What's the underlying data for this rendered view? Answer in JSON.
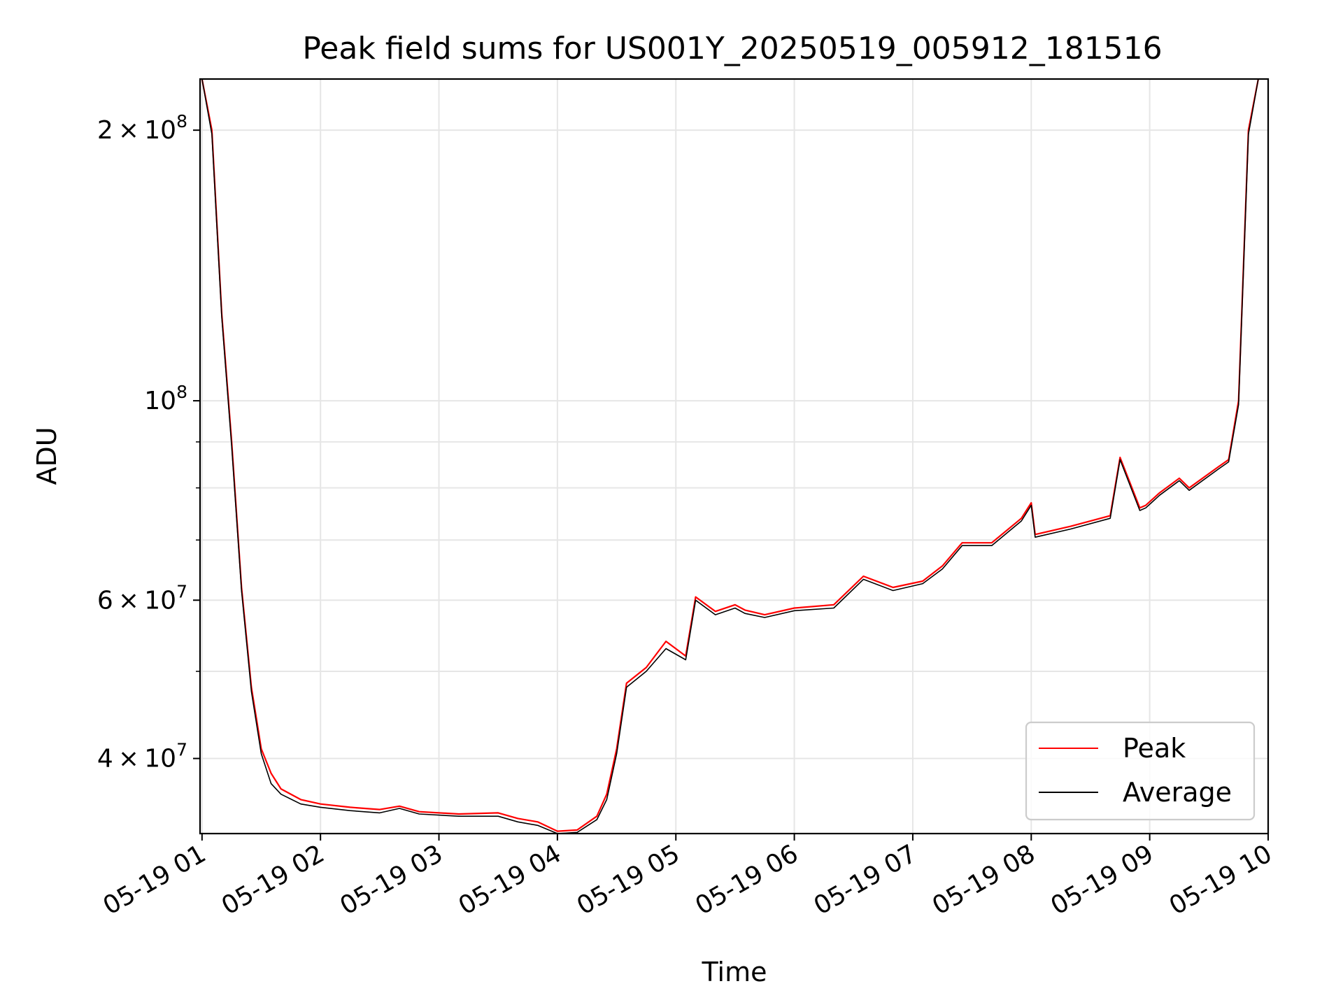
{
  "chart_data": {
    "type": "line",
    "title": "Peak field sums for US001Y_20250519_005912_181516",
    "xlabel": "Time",
    "ylabel": "ADU",
    "y_scale": "log",
    "xlim": [
      "2025-05-19T00:59",
      "2025-05-19T10:00"
    ],
    "ylim": [
      33000000,
      228000000
    ],
    "x_ticks": [
      {
        "value": "2025-05-19T01:00",
        "label": "05-19 01"
      },
      {
        "value": "2025-05-19T02:00",
        "label": "05-19 02"
      },
      {
        "value": "2025-05-19T03:00",
        "label": "05-19 03"
      },
      {
        "value": "2025-05-19T04:00",
        "label": "05-19 04"
      },
      {
        "value": "2025-05-19T05:00",
        "label": "05-19 05"
      },
      {
        "value": "2025-05-19T06:00",
        "label": "05-19 06"
      },
      {
        "value": "2025-05-19T07:00",
        "label": "05-19 07"
      },
      {
        "value": "2025-05-19T08:00",
        "label": "05-19 08"
      },
      {
        "value": "2025-05-19T09:00",
        "label": "05-19 09"
      },
      {
        "value": "2025-05-19T10:00",
        "label": "05-19 10"
      }
    ],
    "y_major_ticks": [
      {
        "value": 40000000,
        "mantissa": "4",
        "exponent": "7"
      },
      {
        "value": 60000000,
        "mantissa": "6",
        "exponent": "7"
      },
      {
        "value": 100000000,
        "mantissa": "",
        "exponent": "8"
      },
      {
        "value": 200000000,
        "mantissa": "2",
        "exponent": "8"
      }
    ],
    "tick_text": {
      "times": "×",
      "base": "10"
    },
    "y_minor_ticks": [
      50000000,
      70000000,
      80000000,
      90000000
    ],
    "grid": true,
    "legend": {
      "position": "lower-right",
      "entries": [
        "Peak",
        "Average"
      ]
    },
    "series": [
      {
        "name": "Peak",
        "color": "#ff0000",
        "x": [
          "2025-05-19T01:00",
          "2025-05-19T01:05",
          "2025-05-19T01:10",
          "2025-05-19T01:15",
          "2025-05-19T01:20",
          "2025-05-19T01:25",
          "2025-05-19T01:30",
          "2025-05-19T01:35",
          "2025-05-19T01:40",
          "2025-05-19T01:50",
          "2025-05-19T02:00",
          "2025-05-19T02:15",
          "2025-05-19T02:30",
          "2025-05-19T02:40",
          "2025-05-19T02:50",
          "2025-05-19T03:10",
          "2025-05-19T03:30",
          "2025-05-19T03:40",
          "2025-05-19T03:50",
          "2025-05-19T04:00",
          "2025-05-19T04:10",
          "2025-05-19T04:20",
          "2025-05-19T04:25",
          "2025-05-19T04:30",
          "2025-05-19T04:35",
          "2025-05-19T04:45",
          "2025-05-19T04:55",
          "2025-05-19T05:05",
          "2025-05-19T05:10",
          "2025-05-19T05:20",
          "2025-05-19T05:30",
          "2025-05-19T05:35",
          "2025-05-19T05:45",
          "2025-05-19T06:00",
          "2025-05-19T06:20",
          "2025-05-19T06:35",
          "2025-05-19T06:50",
          "2025-05-19T07:05",
          "2025-05-19T07:15",
          "2025-05-19T07:25",
          "2025-05-19T07:40",
          "2025-05-19T07:55",
          "2025-05-19T08:00",
          "2025-05-19T08:02",
          "2025-05-19T08:20",
          "2025-05-19T08:40",
          "2025-05-19T08:45",
          "2025-05-19T08:55",
          "2025-05-19T08:58",
          "2025-05-19T09:05",
          "2025-05-19T09:15",
          "2025-05-19T09:20",
          "2025-05-19T09:35",
          "2025-05-19T09:40",
          "2025-05-19T09:45",
          "2025-05-19T09:50",
          "2025-05-19T09:55"
        ],
        "values": [
          228000000,
          200000000,
          125000000,
          90000000,
          62000000,
          48000000,
          41000000,
          38500000,
          37000000,
          36000000,
          35600000,
          35300000,
          35100000,
          35400000,
          34900000,
          34700000,
          34800000,
          34300000,
          34000000,
          33200000,
          33300000,
          34500000,
          36500000,
          41000000,
          48500000,
          50500000,
          54000000,
          52000000,
          60500000,
          58300000,
          59300000,
          58500000,
          57800000,
          58800000,
          59300000,
          63800000,
          62000000,
          63000000,
          65500000,
          69500000,
          69500000,
          74000000,
          77000000,
          71000000,
          72500000,
          74500000,
          86500000,
          76000000,
          76500000,
          79000000,
          82000000,
          80000000,
          84500000,
          86000000,
          100000000,
          200000000,
          228000000
        ]
      },
      {
        "name": "Average",
        "color": "#000000",
        "x": [
          "2025-05-19T01:00",
          "2025-05-19T01:05",
          "2025-05-19T01:10",
          "2025-05-19T01:15",
          "2025-05-19T01:20",
          "2025-05-19T01:25",
          "2025-05-19T01:30",
          "2025-05-19T01:35",
          "2025-05-19T01:40",
          "2025-05-19T01:50",
          "2025-05-19T02:00",
          "2025-05-19T02:15",
          "2025-05-19T02:30",
          "2025-05-19T02:40",
          "2025-05-19T02:50",
          "2025-05-19T03:10",
          "2025-05-19T03:30",
          "2025-05-19T03:40",
          "2025-05-19T03:50",
          "2025-05-19T04:00",
          "2025-05-19T04:10",
          "2025-05-19T04:20",
          "2025-05-19T04:25",
          "2025-05-19T04:30",
          "2025-05-19T04:35",
          "2025-05-19T04:45",
          "2025-05-19T04:55",
          "2025-05-19T05:05",
          "2025-05-19T05:10",
          "2025-05-19T05:20",
          "2025-05-19T05:30",
          "2025-05-19T05:35",
          "2025-05-19T05:45",
          "2025-05-19T06:00",
          "2025-05-19T06:20",
          "2025-05-19T06:35",
          "2025-05-19T06:50",
          "2025-05-19T07:05",
          "2025-05-19T07:15",
          "2025-05-19T07:25",
          "2025-05-19T07:40",
          "2025-05-19T07:55",
          "2025-05-19T08:00",
          "2025-05-19T08:02",
          "2025-05-19T08:20",
          "2025-05-19T08:40",
          "2025-05-19T08:45",
          "2025-05-19T08:55",
          "2025-05-19T08:58",
          "2025-05-19T09:05",
          "2025-05-19T09:15",
          "2025-05-19T09:20",
          "2025-05-19T09:35",
          "2025-05-19T09:40",
          "2025-05-19T09:45",
          "2025-05-19T09:50",
          "2025-05-19T09:55"
        ],
        "values": [
          228000000,
          198000000,
          124000000,
          89000000,
          61500000,
          47500000,
          40500000,
          37500000,
          36500000,
          35600000,
          35300000,
          35000000,
          34800000,
          35200000,
          34700000,
          34500000,
          34500000,
          34000000,
          33700000,
          33000000,
          33100000,
          34200000,
          36000000,
          40500000,
          48000000,
          50000000,
          53000000,
          51500000,
          60000000,
          57800000,
          58800000,
          58000000,
          57400000,
          58400000,
          58800000,
          63300000,
          61500000,
          62600000,
          65000000,
          69000000,
          69000000,
          73500000,
          76500000,
          70500000,
          72000000,
          74000000,
          86000000,
          75500000,
          76000000,
          78500000,
          81500000,
          79500000,
          84000000,
          85500000,
          99000000,
          198000000,
          228000000
        ]
      }
    ]
  }
}
